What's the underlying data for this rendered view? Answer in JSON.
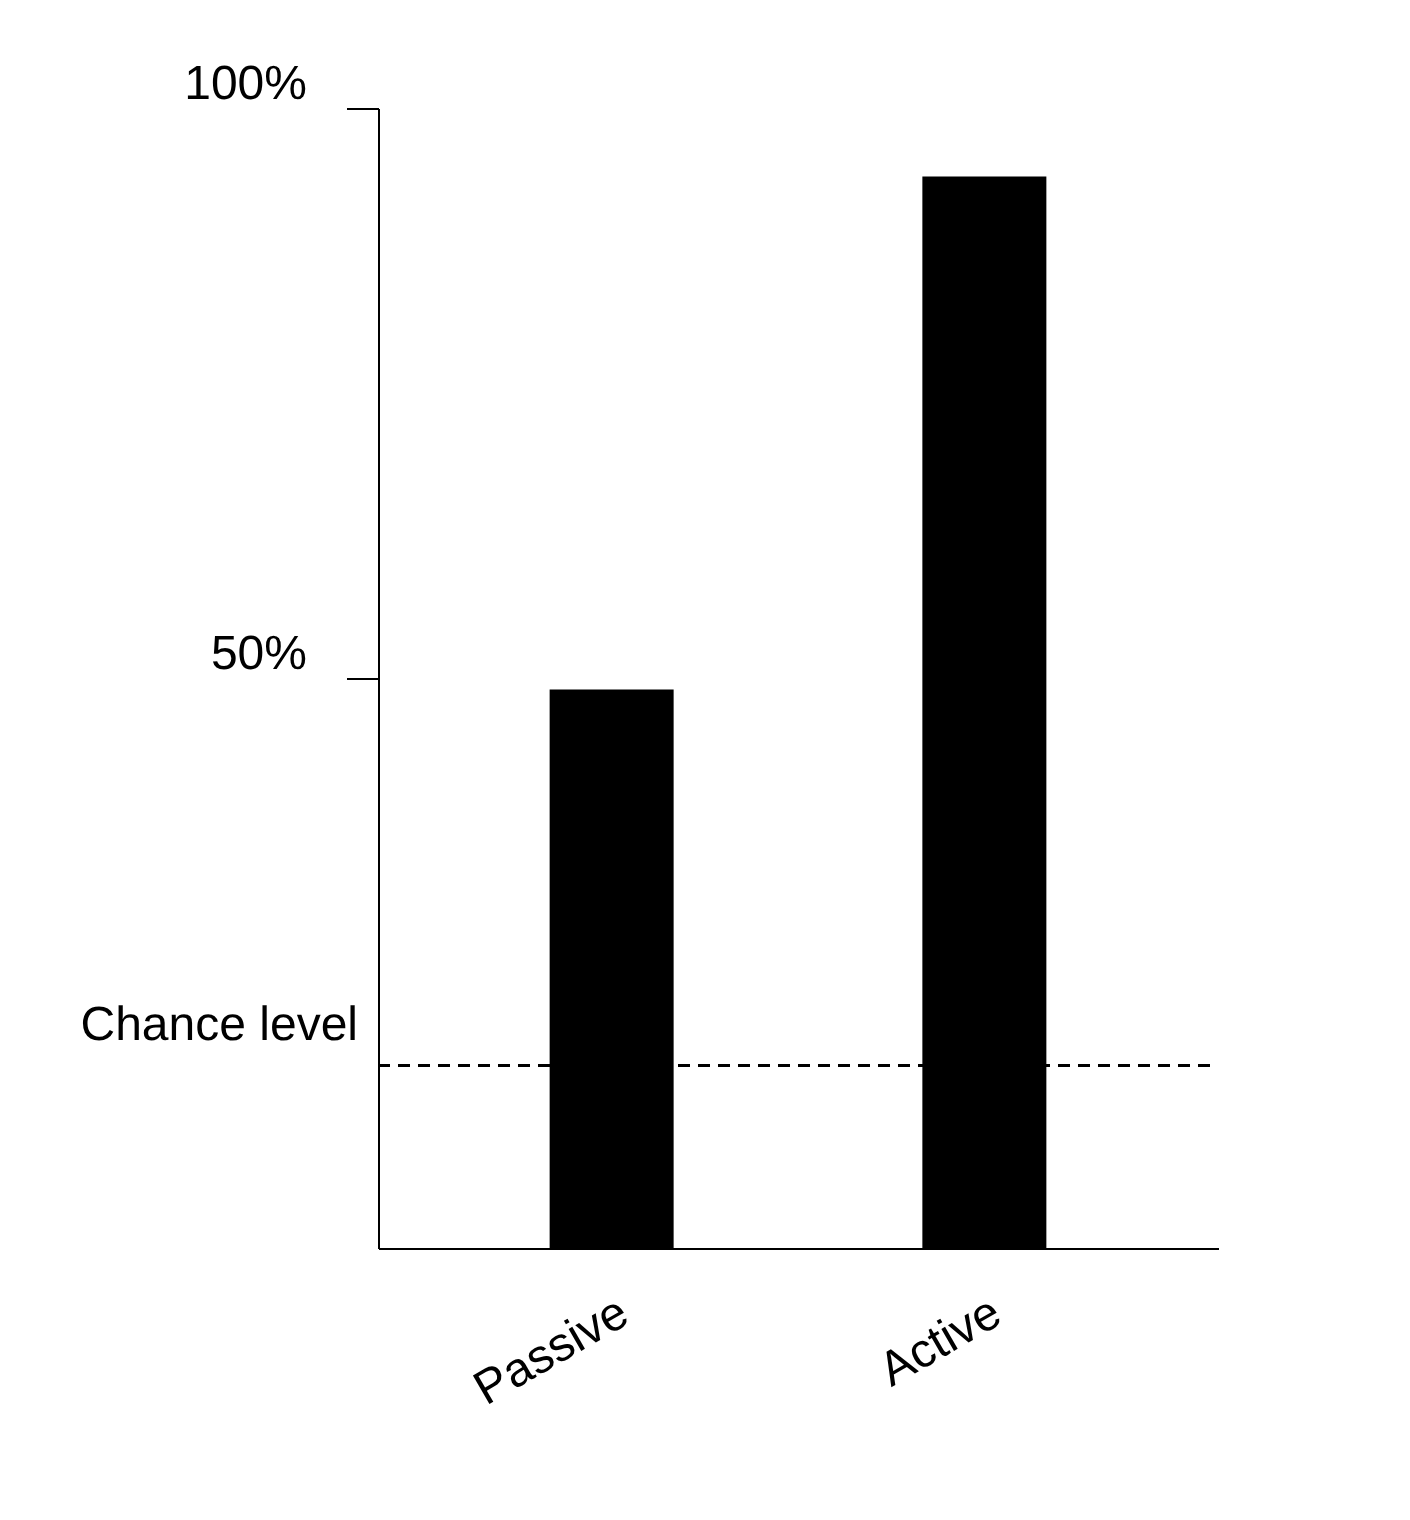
{
  "chart_data": {
    "type": "bar",
    "categories": [
      "Passive",
      "Active"
    ],
    "values": [
      49,
      94
    ],
    "colors": [
      "#000000",
      "#000000"
    ],
    "ylim": [
      0,
      100
    ],
    "yticks": [
      {
        "value": 50,
        "label": "50%"
      },
      {
        "value": 100,
        "label": "100%"
      }
    ],
    "grid": false,
    "ref_lines": [
      {
        "axis": "y",
        "value": 16,
        "label": "Chance level",
        "color": "#000000",
        "line_style": "dashed"
      }
    ]
  }
}
